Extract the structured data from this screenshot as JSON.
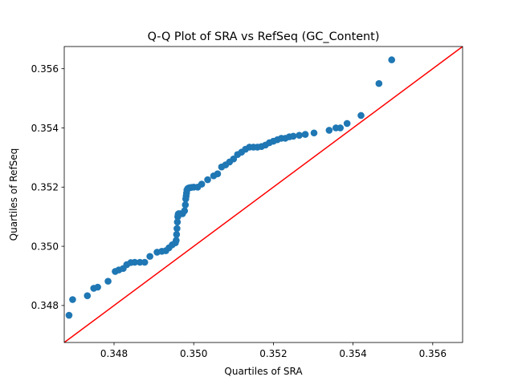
{
  "chart_data": {
    "type": "scatter",
    "title": "Q-Q Plot of SRA vs RefSeq (GC_Content)",
    "xlabel": "Quartiles of SRA",
    "ylabel": "Quartiles of RefSeq",
    "xlim": [
      0.34675,
      0.35675
    ],
    "ylim": [
      0.34675,
      0.35675
    ],
    "xticks": [
      0.348,
      0.35,
      0.352,
      0.354,
      0.356
    ],
    "yticks": [
      0.348,
      0.35,
      0.352,
      0.354,
      0.356
    ],
    "tick_labels": [
      "0.348",
      "0.350",
      "0.352",
      "0.354",
      "0.356"
    ],
    "grid": false,
    "reference_line": {
      "from": [
        0.34675,
        0.34675
      ],
      "to": [
        0.35675,
        0.35675
      ],
      "color": "#ff0000"
    },
    "point_color": "#1f77b4",
    "x": [
      0.34687,
      0.34696,
      0.34733,
      0.34749,
      0.34759,
      0.34785,
      0.34803,
      0.34812,
      0.34823,
      0.34832,
      0.34842,
      0.34852,
      0.34865,
      0.34877,
      0.3489,
      0.34908,
      0.3492,
      0.3493,
      0.34938,
      0.34946,
      0.34954,
      0.34956,
      0.34957,
      0.34958,
      0.34959,
      0.3496,
      0.34961,
      0.34962,
      0.34966,
      0.34972,
      0.34977,
      0.34979,
      0.3498,
      0.34981,
      0.34982,
      0.34983,
      0.34985,
      0.34987,
      0.3499,
      0.34994,
      0.35,
      0.3501,
      0.3502,
      0.35035,
      0.3505,
      0.3506,
      0.3507,
      0.3508,
      0.3509,
      0.351,
      0.3511,
      0.3512,
      0.3513,
      0.3514,
      0.3515,
      0.3516,
      0.3517,
      0.3518,
      0.3519,
      0.352,
      0.3521,
      0.3522,
      0.3523,
      0.3524,
      0.3525,
      0.35265,
      0.3528,
      0.35302,
      0.3534,
      0.35357,
      0.35368,
      0.35385,
      0.3542,
      0.35465,
      0.35497
    ],
    "y": [
      0.34767,
      0.3482,
      0.34833,
      0.34858,
      0.34862,
      0.34882,
      0.34915,
      0.3492,
      0.34925,
      0.34938,
      0.34945,
      0.34946,
      0.34946,
      0.34946,
      0.34966,
      0.3498,
      0.34983,
      0.34985,
      0.34995,
      0.35005,
      0.35012,
      0.3502,
      0.3504,
      0.3506,
      0.35082,
      0.351,
      0.35108,
      0.3511,
      0.3511,
      0.3511,
      0.3512,
      0.3514,
      0.3516,
      0.3517,
      0.3518,
      0.3519,
      0.35195,
      0.35197,
      0.35198,
      0.35199,
      0.352,
      0.352,
      0.3521,
      0.35225,
      0.35238,
      0.35245,
      0.35268,
      0.35275,
      0.35285,
      0.35295,
      0.3531,
      0.35318,
      0.35328,
      0.35335,
      0.35335,
      0.35335,
      0.35337,
      0.35342,
      0.3535,
      0.35355,
      0.3536,
      0.35365,
      0.35365,
      0.3537,
      0.35372,
      0.35375,
      0.35378,
      0.35383,
      0.35392,
      0.354,
      0.354,
      0.35415,
      0.35442,
      0.3555,
      0.3563
    ]
  }
}
